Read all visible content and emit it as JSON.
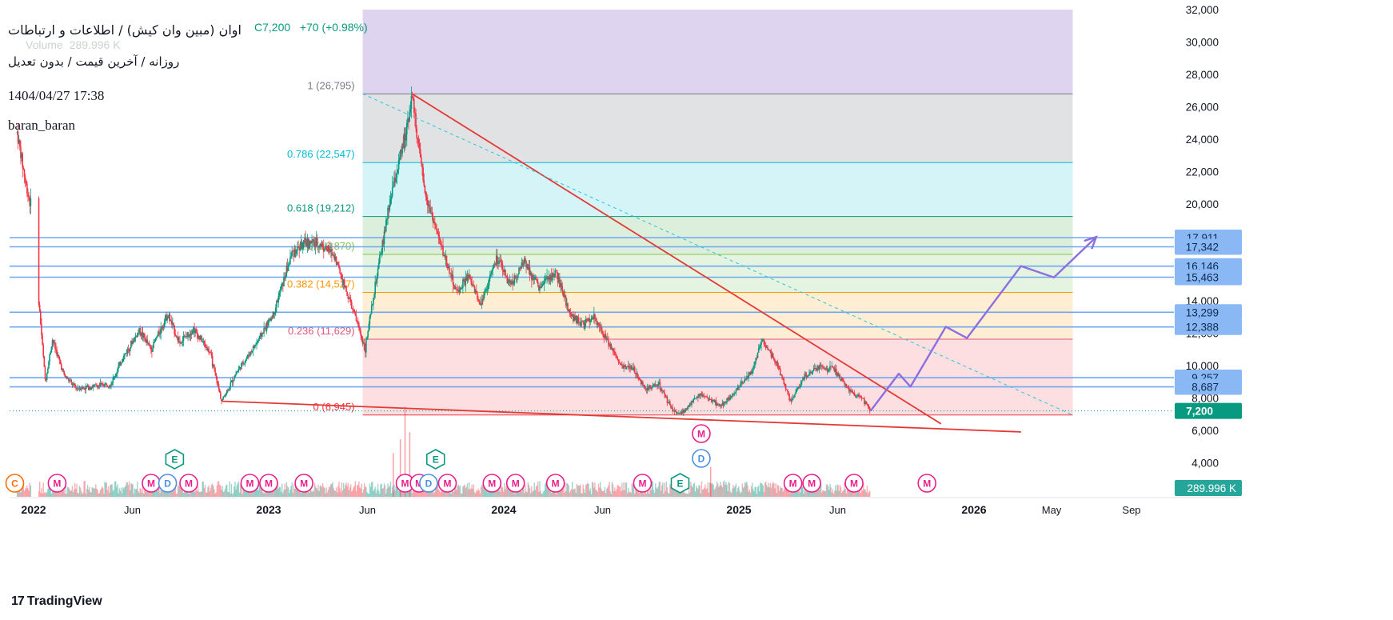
{
  "legend": {
    "title": "اوان (مبین وان کیش) / اطلاعات و ارتباطات",
    "subtitle": "روزانه / آخرین قیمت / بدون تعدیل",
    "datetime": "1404/04/27 17:38",
    "username": "baran_baran",
    "close_text": "C7,200",
    "change_text": "+70 (+0.98%)",
    "volume_label": "Volume",
    "volume_value": "289.996 K"
  },
  "branding": {
    "logo_text": "TradingView"
  },
  "colors": {
    "up": "#089981",
    "down": "#f23645",
    "trend": "#e53935",
    "projection": "#8c6fe0",
    "hline": "#6fa8f0",
    "price_label": "#2b6fd0",
    "current_label": "#089981",
    "volume_label": "#26a69a"
  },
  "chart_data": {
    "type": "candlestick",
    "x_axis": {
      "start": "2021-11",
      "end": "2026-09",
      "ticks": [
        "2022",
        "Jun",
        "2023",
        "Jun",
        "2024",
        "Jun",
        "2025",
        "Jun",
        "2026",
        "May",
        "Sep"
      ],
      "tick_dates": [
        2022.0,
        2022.42,
        2023.0,
        2023.42,
        2024.0,
        2024.42,
        2025.0,
        2025.42,
        2026.0,
        2026.33,
        2026.67
      ]
    },
    "y_axis": {
      "range": [
        3000,
        32000
      ],
      "ticks": [
        4000,
        6000,
        8000,
        10000,
        12000,
        14000,
        20000,
        22000,
        24000,
        26000,
        28000,
        30000,
        32000
      ],
      "tick_labels": [
        "4,000",
        "6,000",
        "8,000",
        "10,000",
        "12,000",
        "14,000",
        "20,000",
        "22,000",
        "24,000",
        "26,000",
        "28,000",
        "30,000",
        "32,000"
      ]
    },
    "price_path": [
      [
        2021.93,
        24400
      ],
      [
        2021.97,
        21000
      ],
      [
        2021.99,
        19800
      ],
      [
        2022.05,
        9000
      ],
      [
        2022.08,
        11600
      ],
      [
        2022.13,
        9400
      ],
      [
        2022.18,
        8600
      ],
      [
        2022.25,
        8700
      ],
      [
        2022.33,
        8900
      ],
      [
        2022.38,
        10500
      ],
      [
        2022.45,
        12200
      ],
      [
        2022.5,
        11000
      ],
      [
        2022.57,
        13200
      ],
      [
        2022.62,
        11400
      ],
      [
        2022.68,
        12300
      ],
      [
        2022.75,
        10800
      ],
      [
        2022.8,
        7800
      ],
      [
        2022.86,
        9500
      ],
      [
        2022.94,
        11200
      ],
      [
        2023.02,
        13200
      ],
      [
        2023.1,
        17000
      ],
      [
        2023.16,
        17600
      ],
      [
        2023.22,
        17500
      ],
      [
        2023.28,
        16800
      ],
      [
        2023.33,
        14600
      ],
      [
        2023.38,
        12500
      ],
      [
        2023.41,
        11000
      ],
      [
        2023.46,
        15500
      ],
      [
        2023.52,
        20500
      ],
      [
        2023.57,
        23500
      ],
      [
        2023.61,
        26700
      ],
      [
        2023.66,
        21000
      ],
      [
        2023.72,
        18000
      ],
      [
        2023.8,
        14500
      ],
      [
        2023.85,
        15500
      ],
      [
        2023.9,
        13800
      ],
      [
        2023.97,
        16600
      ],
      [
        2024.03,
        15000
      ],
      [
        2024.09,
        16500
      ],
      [
        2024.15,
        14800
      ],
      [
        2024.22,
        15800
      ],
      [
        2024.28,
        13200
      ],
      [
        2024.34,
        12500
      ],
      [
        2024.38,
        13000
      ],
      [
        2024.43,
        11800
      ],
      [
        2024.5,
        10000
      ],
      [
        2024.55,
        9800
      ],
      [
        2024.6,
        8600
      ],
      [
        2024.66,
        8800
      ],
      [
        2024.72,
        7200
      ],
      [
        2024.76,
        7100
      ],
      [
        2024.83,
        8200
      ],
      [
        2024.88,
        7900
      ],
      [
        2024.92,
        7500
      ],
      [
        2024.96,
        8000
      ],
      [
        2025.05,
        9500
      ],
      [
        2025.1,
        11600
      ],
      [
        2025.16,
        10200
      ],
      [
        2025.22,
        7800
      ],
      [
        2025.28,
        9300
      ],
      [
        2025.34,
        9900
      ],
      [
        2025.4,
        9800
      ],
      [
        2025.47,
        8400
      ],
      [
        2025.52,
        8100
      ],
      [
        2025.56,
        7200
      ]
    ],
    "volume_scale_max": 800000,
    "volume_spikes": [
      [
        2023.58,
        780000
      ],
      [
        2023.6,
        560000
      ],
      [
        2023.56,
        500000
      ],
      [
        2023.53,
        380000
      ],
      [
        2024.88,
        260000
      ]
    ],
    "current_price": 7200,
    "current_volume": "289.996 K",
    "fibonacci": [
      {
        "ratio": "0",
        "price": 6945,
        "label": "0 (6,945)",
        "color": "#f23645",
        "fill": "rgba(242,54,69,0.16)"
      },
      {
        "ratio": "0.236",
        "price": 11629,
        "label": "0.236 (11,629)",
        "color": "#e0577c",
        "fill": "rgba(255,167,38,0.2)"
      },
      {
        "ratio": "0.382",
        "price": 14527,
        "label": "0.382 (14,527)",
        "color": "#ff9800",
        "fill": "rgba(178,223,167,0.35)"
      },
      {
        "ratio": "0.5",
        "price": 16870,
        "label": "0.5 (16,870)",
        "color": "#8bc34a",
        "fill": "rgba(129,199,132,0.28)"
      },
      {
        "ratio": "0.618",
        "price": 19212,
        "label": "0.618 (19,212)",
        "color": "#089981",
        "fill": "rgba(0,188,212,0.17)"
      },
      {
        "ratio": "0.786",
        "price": 22547,
        "label": "0.786 (22,547)",
        "color": "#00bcd4",
        "fill": "rgba(120,123,134,0.22)"
      },
      {
        "ratio": "1",
        "price": 26795,
        "label": "1 (26,795)",
        "color": "#787b86",
        "fill": "rgba(126,87,194,0.26)"
      }
    ],
    "fib_top_price": 32000,
    "fib_x_range": [
      2023.4,
      2026.42
    ],
    "horizontal_levels": [
      17911,
      17342,
      16146,
      15463,
      13299,
      12388,
      9257,
      8687
    ],
    "horizontal_level_labels": [
      "17,911",
      "17,342",
      "16,146",
      "15,463",
      "13,299",
      "12,388",
      "9,257",
      "8,687"
    ],
    "current_price_label": "7,200",
    "trend_lines": [
      {
        "name": "",
        "from": [
          2023.61,
          26795
        ],
        "to": [
          2025.86,
          6400
        ],
        "style": "solid"
      },
      {
        "name": "",
        "from": [
          2022.8,
          7800
        ],
        "to": [
          2026.2,
          5900
        ],
        "style": "solid"
      },
      {
        "name": "",
        "from": [
          2023.4,
          26795
        ],
        "to": [
          2026.42,
          6945
        ],
        "style": "dashed"
      }
    ],
    "projection_path": [
      [
        2025.56,
        7200
      ],
      [
        2025.68,
        9500
      ],
      [
        2025.73,
        8700
      ],
      [
        2025.88,
        12400
      ],
      [
        2025.97,
        11700
      ],
      [
        2026.2,
        16150
      ],
      [
        2026.34,
        15450
      ],
      [
        2026.52,
        17950
      ]
    ],
    "event_markers": {
      "row_bottom": [
        {
          "date": 2021.92,
          "letter": "C",
          "kind": "C"
        },
        {
          "date": 2022.1,
          "letter": "M",
          "kind": "M"
        },
        {
          "date": 2022.5,
          "letter": "M",
          "kind": "M"
        },
        {
          "date": 2022.57,
          "letter": "D",
          "kind": "D"
        },
        {
          "date": 2022.66,
          "letter": "M",
          "kind": "M"
        },
        {
          "date": 2022.92,
          "letter": "M",
          "kind": "M"
        },
        {
          "date": 2023.0,
          "letter": "M",
          "kind": "M"
        },
        {
          "date": 2023.15,
          "letter": "M",
          "kind": "M"
        },
        {
          "date": 2023.58,
          "letter": "M",
          "kind": "M"
        },
        {
          "date": 2023.64,
          "letter": "M",
          "kind": "M"
        },
        {
          "date": 2023.68,
          "letter": "D",
          "kind": "D"
        },
        {
          "date": 2023.76,
          "letter": "M",
          "kind": "M"
        },
        {
          "date": 2023.95,
          "letter": "M",
          "kind": "M"
        },
        {
          "date": 2024.05,
          "letter": "M",
          "kind": "M"
        },
        {
          "date": 2024.22,
          "letter": "M",
          "kind": "M"
        },
        {
          "date": 2024.59,
          "letter": "M",
          "kind": "M"
        },
        {
          "date": 2024.75,
          "letter": "E",
          "kind": "E"
        },
        {
          "date": 2025.23,
          "letter": "M",
          "kind": "M"
        },
        {
          "date": 2025.31,
          "letter": "M",
          "kind": "M"
        },
        {
          "date": 2025.49,
          "letter": "M",
          "kind": "M"
        },
        {
          "date": 2025.8,
          "letter": "M",
          "kind": "M"
        }
      ],
      "row_top": [
        {
          "date": 2022.6,
          "letter": "E",
          "kind": "E"
        },
        {
          "date": 2023.71,
          "letter": "E",
          "kind": "E"
        }
      ],
      "stack": [
        {
          "date": 2024.84,
          "letter": "M",
          "kind": "M",
          "row": 2
        },
        {
          "date": 2024.84,
          "letter": "D",
          "kind": "D",
          "row": 1
        }
      ]
    }
  }
}
